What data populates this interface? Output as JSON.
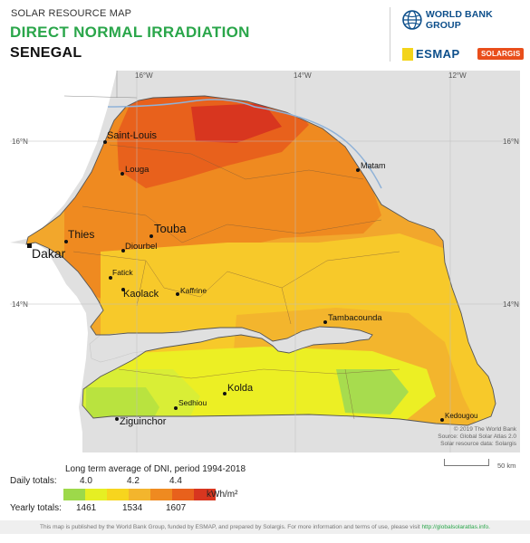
{
  "header": {
    "pre_title": "SOLAR RESOURCE MAP",
    "title": "DIRECT NORMAL IRRADIATION",
    "country": "SENEGAL",
    "world_bank": "WORLD BANK GROUP",
    "esmap": "ESMAP",
    "solargis": "SOLARGIS"
  },
  "map": {
    "grid_labels": {
      "lon_16": "16°W",
      "lon_14": "14°W",
      "lon_12": "12°W",
      "lat_16_left": "16°N",
      "lat_16_right": "16°N",
      "lat_14_left": "14°N",
      "lat_14_right": "14°N"
    },
    "cities": {
      "saint_louis": "Saint-Louis",
      "louga": "Louga",
      "matam": "Matam",
      "thies": "Thies",
      "touba": "Touba",
      "diourbel": "Diourbel",
      "dakar": "Dakar",
      "fatick": "Fatick",
      "kaolack": "Kaolack",
      "kaffrine": "Kaffrine",
      "tambacounda": "Tambacounda",
      "kolda": "Kolda",
      "sedhiou": "Sedhiou",
      "ziguinchor": "Ziguinchor",
      "kedougou": "Kedougou"
    },
    "credits": [
      "© 2019 The World Bank",
      "Source: Global Solar Atlas 2.0",
      "Solar resource data: Solargis"
    ],
    "scale_label": "50 km"
  },
  "legend": {
    "title": "Long term average of DNI, period 1994-2018",
    "daily_label": "Daily totals:",
    "yearly_label": "Yearly totals:",
    "daily_values": [
      "4.0",
      "4.2",
      "4.4"
    ],
    "yearly_values": [
      "1461",
      "1534",
      "1607"
    ],
    "unit": "kWh/m²",
    "colors": [
      "#9dd94a",
      "#e6ef23",
      "#f7d51e",
      "#f3b52d",
      "#ef8a20",
      "#e8611c",
      "#d8361f"
    ]
  },
  "footer": {
    "text": "This map is published by the World Bank Group, funded by ESMAP, and prepared by Solargis. For more information and terms of use, please visit",
    "link": "http://globalsolaratlas.info."
  }
}
